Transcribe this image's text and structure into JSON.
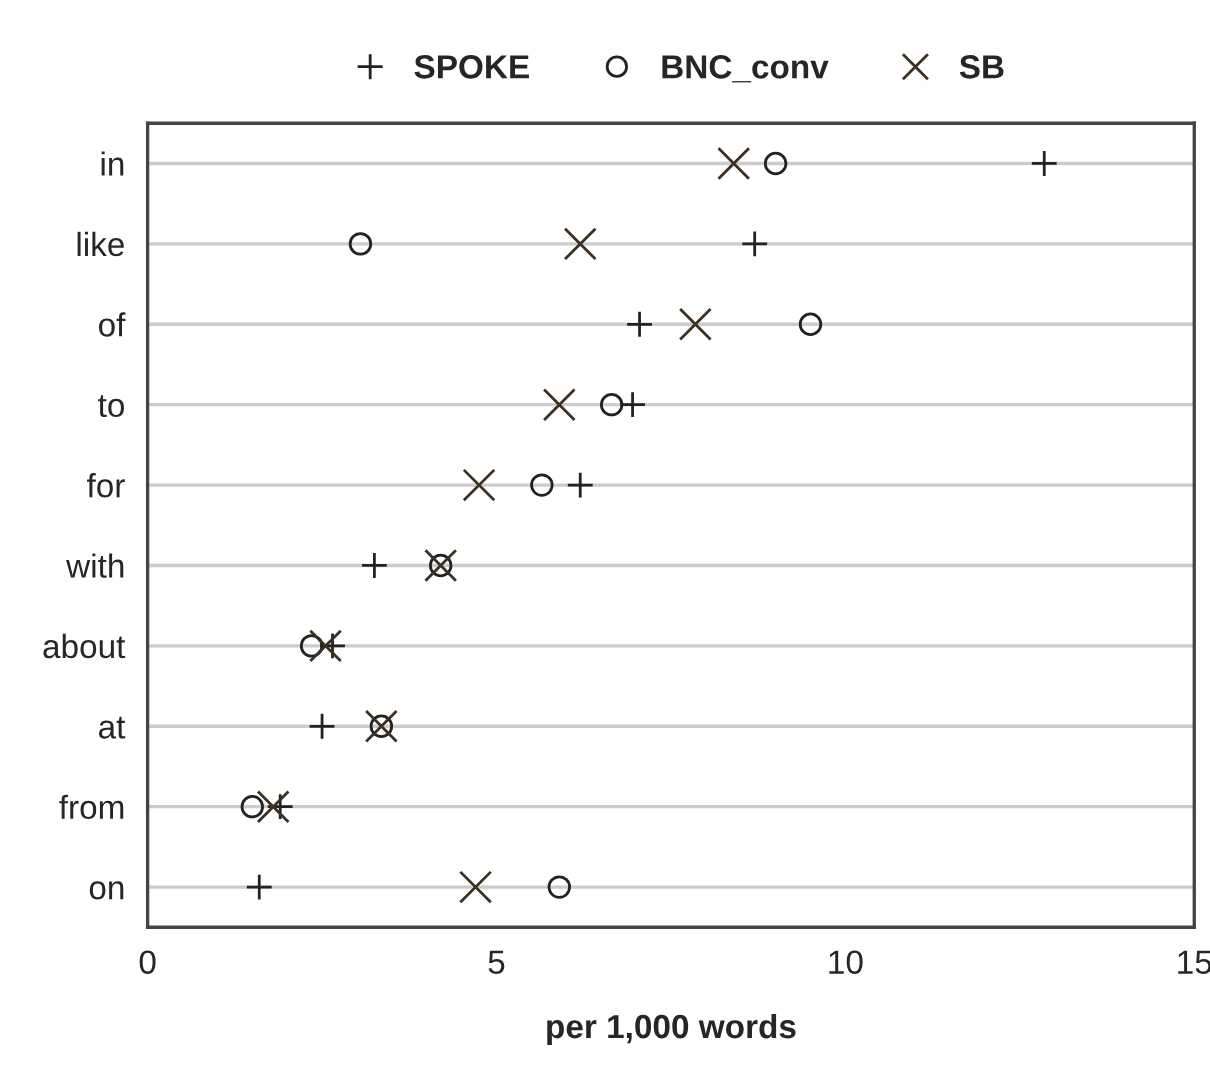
{
  "chart_data": {
    "type": "scatter",
    "orientation": "horizontal",
    "xlabel": "per 1,000 words",
    "categories": [
      "in",
      "like",
      "of",
      "to",
      "for",
      "with",
      "about",
      "at",
      "from",
      "on"
    ],
    "series": [
      {
        "name": "SPOKE",
        "color": "#222222",
        "marker": "cross",
        "values": [
          12.85,
          8.7,
          7.05,
          6.95,
          6.2,
          3.25,
          2.65,
          2.5,
          1.9,
          1.6
        ]
      },
      {
        "name": "BNC_conv",
        "color": "#222222",
        "marker": "circle",
        "values": [
          9.0,
          3.05,
          9.5,
          6.65,
          5.65,
          4.2,
          2.35,
          3.35,
          1.5,
          5.9
        ]
      },
      {
        "name": "SB",
        "color": "#3d3020",
        "marker": "x",
        "values": [
          8.4,
          6.2,
          7.85,
          5.9,
          4.75,
          4.2,
          2.55,
          3.35,
          1.8,
          4.7
        ]
      }
    ],
    "xlim": [
      0,
      15
    ],
    "xticks": [
      0,
      5,
      10,
      15
    ],
    "grid": "y",
    "legend": "top"
  }
}
